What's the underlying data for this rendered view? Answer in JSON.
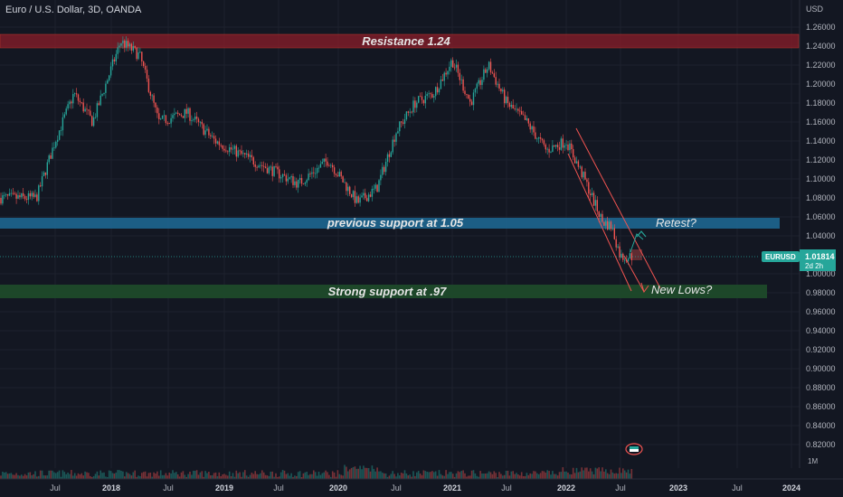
{
  "header": {
    "title": "Euro / U.S. Dollar, 3D, OANDA"
  },
  "axis": {
    "currency": "USD",
    "y_ticks": [
      "1.26000",
      "1.24000",
      "1.22000",
      "1.20000",
      "1.18000",
      "1.16000",
      "1.14000",
      "1.12000",
      "1.10000",
      "1.08000",
      "1.06000",
      "1.04000",
      "1.00000",
      "0.98000",
      "0.96000",
      "0.94000",
      "0.92000",
      "0.90000",
      "0.88000",
      "0.86000",
      "0.84000",
      "0.82000"
    ],
    "volume_unit": "1M",
    "x_ticks": [
      {
        "label": "Jul",
        "bold": false
      },
      {
        "label": "2018",
        "bold": true
      },
      {
        "label": "Jul",
        "bold": false
      },
      {
        "label": "2019",
        "bold": true
      },
      {
        "label": "Jul",
        "bold": false
      },
      {
        "label": "2020",
        "bold": true
      },
      {
        "label": "Jul",
        "bold": false
      },
      {
        "label": "2021",
        "bold": true
      },
      {
        "label": "Jul",
        "bold": false
      },
      {
        "label": "2022",
        "bold": true
      },
      {
        "label": "Jul",
        "bold": false
      },
      {
        "label": "2023",
        "bold": true
      },
      {
        "label": "Jul",
        "bold": false
      },
      {
        "label": "2024",
        "bold": true
      }
    ]
  },
  "price_tag": {
    "symbol": "EURUSD",
    "price": "1.01814",
    "countdown": "2d 2h"
  },
  "annotations": {
    "resistance": "Resistance 1.24",
    "previous_support": "previous support at 1.05",
    "strong_support": "Strong support at .97",
    "retest": "Retest?",
    "new_lows": "New Lows?"
  },
  "colors": {
    "background": "#131722",
    "up_candle": "#26a69a",
    "down_candle": "#ef5350",
    "resistance_zone": "#8b1e2a",
    "previous_support_zone": "#1e6690",
    "strong_support_zone": "#1d4a2a",
    "price_tag": "#26a69a"
  },
  "chart_data": {
    "type": "candlestick",
    "symbol": "EURUSD",
    "timeframe": "3D",
    "source": "OANDA",
    "ylim": [
      0.805,
      1.265
    ],
    "close_path": [
      {
        "date": "2017-05",
        "value": 1.08
      },
      {
        "date": "2017-07",
        "value": 1.14
      },
      {
        "date": "2017-09",
        "value": 1.19
      },
      {
        "date": "2017-11",
        "value": 1.16
      },
      {
        "date": "2018-02",
        "value": 1.245
      },
      {
        "date": "2018-04",
        "value": 1.23
      },
      {
        "date": "2018-06",
        "value": 1.16
      },
      {
        "date": "2018-09",
        "value": 1.17
      },
      {
        "date": "2018-12",
        "value": 1.14
      },
      {
        "date": "2019-04",
        "value": 1.12
      },
      {
        "date": "2019-09",
        "value": 1.095
      },
      {
        "date": "2019-12",
        "value": 1.12
      },
      {
        "date": "2020-03",
        "value": 1.075
      },
      {
        "date": "2020-05",
        "value": 1.09
      },
      {
        "date": "2020-07",
        "value": 1.15
      },
      {
        "date": "2020-09",
        "value": 1.18
      },
      {
        "date": "2020-11",
        "value": 1.19
      },
      {
        "date": "2021-01",
        "value": 1.225
      },
      {
        "date": "2021-03",
        "value": 1.18
      },
      {
        "date": "2021-05",
        "value": 1.22
      },
      {
        "date": "2021-07",
        "value": 1.18
      },
      {
        "date": "2021-09",
        "value": 1.16
      },
      {
        "date": "2021-11",
        "value": 1.13
      },
      {
        "date": "2022-01",
        "value": 1.14
      },
      {
        "date": "2022-03",
        "value": 1.1
      },
      {
        "date": "2022-05",
        "value": 1.055
      },
      {
        "date": "2022-06",
        "value": 1.05
      },
      {
        "date": "2022-07",
        "value": 1.01814
      }
    ],
    "zones": [
      {
        "label": "Resistance 1.24",
        "price": 1.24
      },
      {
        "label": "previous support at 1.05",
        "price": 1.05
      },
      {
        "label": "Strong support at .97",
        "price": 0.97
      }
    ],
    "last_price": 1.01814
  }
}
